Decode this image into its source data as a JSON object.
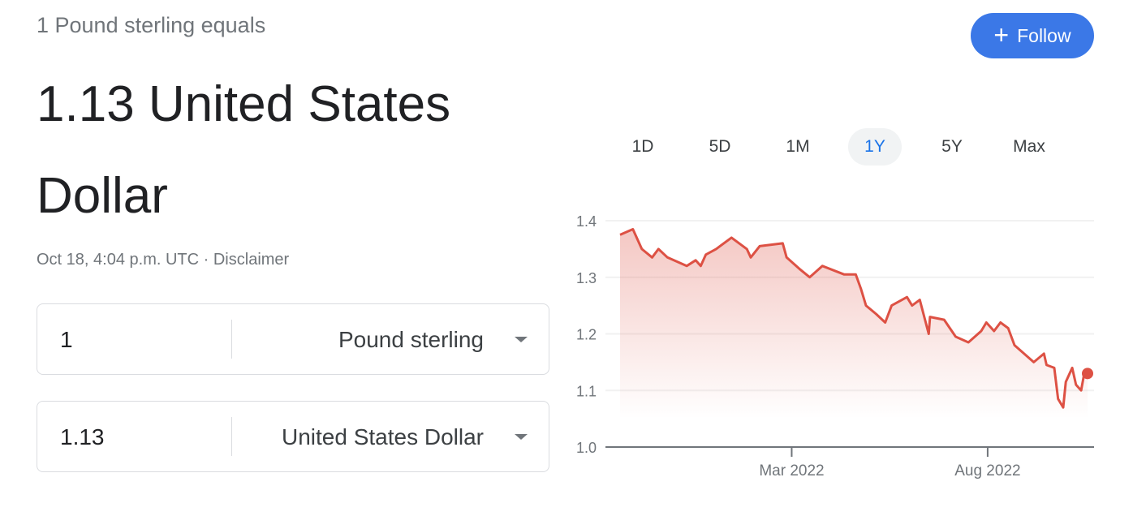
{
  "header": {
    "subtitle": "1 Pound sterling equals",
    "result": "1.13 United States Dollar",
    "timestamp": "Oct 18, 4:04 p.m. UTC",
    "separator": " · ",
    "disclaimer": "Disclaimer",
    "follow_label": "Follow",
    "follow_icon": "plus-icon"
  },
  "converter": {
    "from": {
      "value": "1",
      "currency": "Pound sterling"
    },
    "to": {
      "value": "1.13",
      "currency": "United States Dollar"
    }
  },
  "tabs": [
    {
      "label": "1D",
      "active": false
    },
    {
      "label": "5D",
      "active": false
    },
    {
      "label": "1M",
      "active": false
    },
    {
      "label": "1Y",
      "active": true
    },
    {
      "label": "5Y",
      "active": false
    },
    {
      "label": "Max",
      "active": false
    }
  ],
  "colors": {
    "line": "#dd5144",
    "accent": "#3b78e7",
    "active_tab": "#1a73e8"
  },
  "chart_data": {
    "type": "area",
    "xlabel": "",
    "ylabel": "",
    "ylim": [
      1.0,
      1.4
    ],
    "xlim": [
      "2021-10-18",
      "2022-10-18"
    ],
    "yticks": [
      "1.4",
      "1.3",
      "1.2",
      "1.1",
      "1.0"
    ],
    "xticks": [
      {
        "date": "2022-03-01",
        "label": "Mar 2022"
      },
      {
        "date": "2022-08-01",
        "label": "Aug 2022"
      }
    ],
    "grid": true,
    "points": [
      [
        "2021-10-18",
        1.375
      ],
      [
        "2021-10-28",
        1.385
      ],
      [
        "2021-11-04",
        1.35
      ],
      [
        "2021-11-12",
        1.335
      ],
      [
        "2021-11-17",
        1.35
      ],
      [
        "2021-11-24",
        1.335
      ],
      [
        "2021-12-09",
        1.32
      ],
      [
        "2021-12-16",
        1.33
      ],
      [
        "2021-12-20",
        1.32
      ],
      [
        "2021-12-24",
        1.34
      ],
      [
        "2022-01-01",
        1.35
      ],
      [
        "2022-01-13",
        1.37
      ],
      [
        "2022-01-25",
        1.35
      ],
      [
        "2022-01-28",
        1.335
      ],
      [
        "2022-02-04",
        1.355
      ],
      [
        "2022-02-22",
        1.36
      ],
      [
        "2022-02-25",
        1.335
      ],
      [
        "2022-03-07",
        1.315
      ],
      [
        "2022-03-15",
        1.3
      ],
      [
        "2022-03-25",
        1.32
      ],
      [
        "2022-04-11",
        1.305
      ],
      [
        "2022-04-20",
        1.305
      ],
      [
        "2022-04-24",
        1.28
      ],
      [
        "2022-04-28",
        1.25
      ],
      [
        "2022-05-06",
        1.235
      ],
      [
        "2022-05-13",
        1.22
      ],
      [
        "2022-05-18",
        1.25
      ],
      [
        "2022-05-30",
        1.265
      ],
      [
        "2022-06-03",
        1.25
      ],
      [
        "2022-06-09",
        1.26
      ],
      [
        "2022-06-16",
        1.2
      ],
      [
        "2022-06-17",
        1.23
      ],
      [
        "2022-06-28",
        1.225
      ],
      [
        "2022-07-07",
        1.195
      ],
      [
        "2022-07-17",
        1.185
      ],
      [
        "2022-07-27",
        1.205
      ],
      [
        "2022-07-31",
        1.22
      ],
      [
        "2022-08-06",
        1.205
      ],
      [
        "2022-08-11",
        1.22
      ],
      [
        "2022-08-17",
        1.21
      ],
      [
        "2022-08-22",
        1.18
      ],
      [
        "2022-09-06",
        1.15
      ],
      [
        "2022-09-14",
        1.165
      ],
      [
        "2022-09-16",
        1.145
      ],
      [
        "2022-09-22",
        1.14
      ],
      [
        "2022-09-25",
        1.085
      ],
      [
        "2022-09-29",
        1.07
      ],
      [
        "2022-10-01",
        1.115
      ],
      [
        "2022-10-06",
        1.14
      ],
      [
        "2022-10-09",
        1.11
      ],
      [
        "2022-10-13",
        1.1
      ],
      [
        "2022-10-15",
        1.125
      ],
      [
        "2022-10-18",
        1.13
      ]
    ]
  }
}
